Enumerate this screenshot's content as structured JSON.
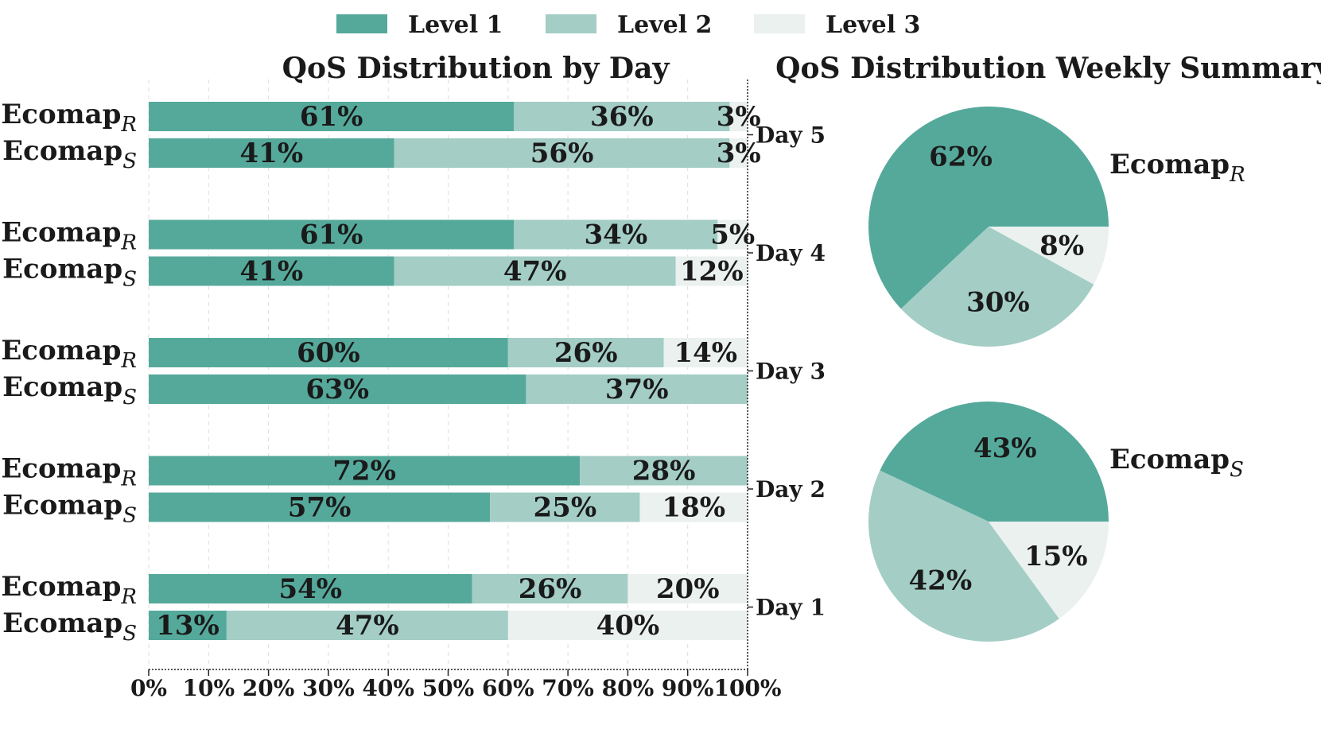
{
  "chart_data": [
    {
      "type": "bar",
      "orientation": "horizontal-stacked",
      "title": "QoS Distribution by Day",
      "days": [
        "Day 5",
        "Day 4",
        "Day 3",
        "Day 2",
        "Day 1"
      ],
      "methods": [
        {
          "id": "R",
          "name": "Ecomap",
          "subscript": "R"
        },
        {
          "id": "S",
          "name": "Ecomap",
          "subscript": "S"
        }
      ],
      "levels": [
        "Level 1",
        "Level 2",
        "Level 3"
      ],
      "values": {
        "Day 5": {
          "R": [
            61,
            36,
            3
          ],
          "S": [
            41,
            56,
            3
          ]
        },
        "Day 4": {
          "R": [
            61,
            34,
            5
          ],
          "S": [
            41,
            47,
            12
          ]
        },
        "Day 3": {
          "R": [
            60,
            26,
            14
          ],
          "S": [
            63,
            37,
            0
          ]
        },
        "Day 2": {
          "R": [
            72,
            28,
            0
          ],
          "S": [
            57,
            25,
            18
          ]
        },
        "Day 1": {
          "R": [
            54,
            26,
            20
          ],
          "S": [
            13,
            47,
            40
          ]
        }
      },
      "xlim": [
        0,
        100
      ],
      "xticks": [
        "0%",
        "10%",
        "20%",
        "30%",
        "40%",
        "50%",
        "60%",
        "70%",
        "80%",
        "90%",
        "100%"
      ],
      "grid": true
    },
    {
      "type": "pie",
      "title": "QoS Distribution Weekly Summary",
      "pies": [
        {
          "id": "R",
          "name": "Ecomap",
          "subscript": "R",
          "values": [
            62,
            30,
            8
          ],
          "labels": [
            "62%",
            "30%",
            "8%"
          ]
        },
        {
          "id": "S",
          "name": "Ecomap",
          "subscript": "S",
          "values": [
            43,
            42,
            15
          ],
          "labels": [
            "43%",
            "42%",
            "15%"
          ]
        }
      ]
    }
  ],
  "legend": {
    "position": "top-center",
    "entries": [
      "Level 1",
      "Level 2",
      "Level 3"
    ]
  },
  "colors": {
    "level1": "#55a99b",
    "level2": "#a3cdc5",
    "level3": "#ebf1ef"
  }
}
